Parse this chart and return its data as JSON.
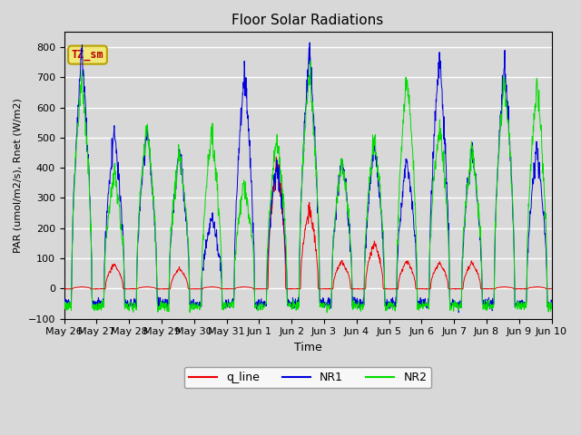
{
  "title": "Floor Solar Radiations",
  "xlabel": "Time",
  "ylabel": "PAR (umol/m2/s), Rnet (W/m2)",
  "ylim": [
    -100,
    850
  ],
  "yticks": [
    -100,
    0,
    100,
    200,
    300,
    400,
    500,
    600,
    700,
    800
  ],
  "background_color": "#d8d8d8",
  "plot_bg_color": "#d8d8d8",
  "annotation_text": "TZ_sm",
  "annotation_bg": "#f0e878",
  "annotation_border": "#b8a000",
  "line_colors": {
    "q_line": "#ee0000",
    "NR1": "#0000dd",
    "NR2": "#00dd00"
  },
  "legend_labels": [
    "q_line",
    "NR1",
    "NR2"
  ],
  "n_days": 15,
  "tick_labels": [
    "May 26",
    "May 27",
    "May 28",
    "May 29",
    "May 30",
    "May 31",
    "Jun 1",
    "Jun 2",
    "Jun 3",
    "Jun 4",
    "Jun 5",
    "Jun 6",
    "Jun 7",
    "Jun 8",
    "Jun 9",
    "Jun 10"
  ],
  "peaks_NR1": [
    790,
    520,
    530,
    450,
    240,
    720,
    415,
    790,
    435,
    475,
    435,
    760,
    465,
    750,
    465
  ],
  "peaks_NR2": [
    700,
    390,
    540,
    450,
    510,
    345,
    505,
    720,
    430,
    505,
    695,
    540,
    465,
    690,
    670
  ],
  "peaks_q": [
    5,
    80,
    5,
    65,
    5,
    5,
    420,
    265,
    90,
    150,
    90,
    85,
    85,
    5,
    5
  ],
  "night_NR1": -50,
  "night_NR2": -58,
  "night_q": -2,
  "pts_per_day": 96,
  "linewidth": 0.7
}
